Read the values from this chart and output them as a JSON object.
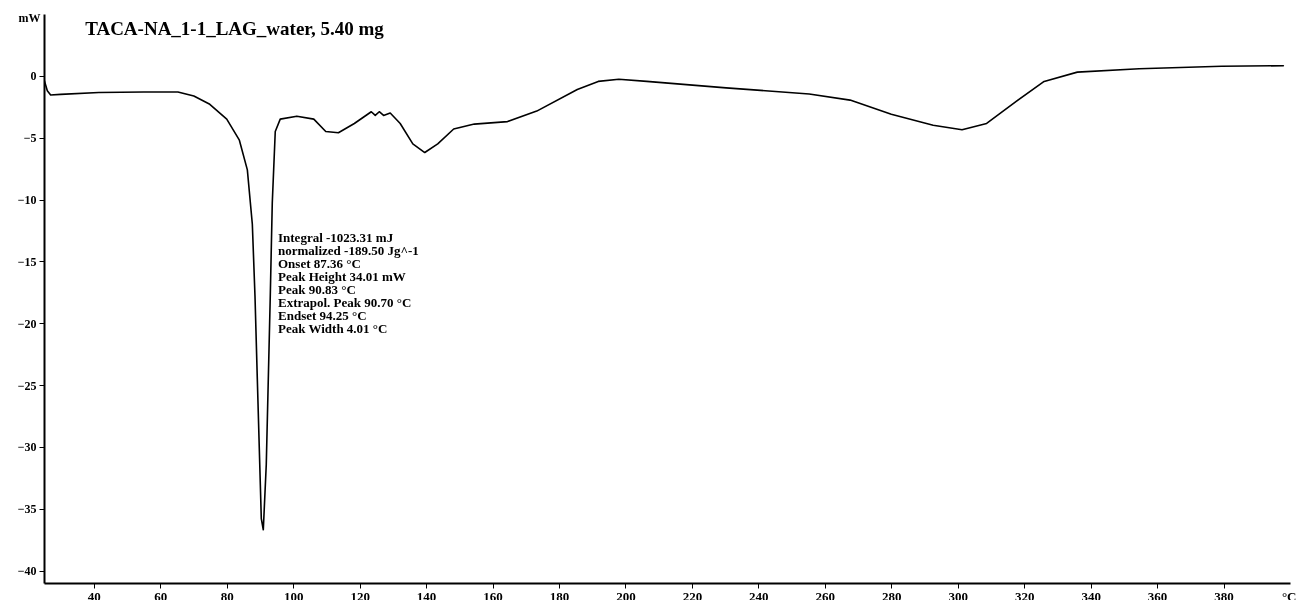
{
  "chart_data": {
    "type": "line",
    "title": "TACA-NA_1-1_LAG_water,  5.40 mg",
    "xlabel": "°C",
    "ylabel": "mW",
    "xlim": [
      25,
      400
    ],
    "xticks": [
      40,
      60,
      80,
      100,
      120,
      140,
      160,
      180,
      200,
      220,
      240,
      260,
      280,
      300,
      320,
      340,
      360,
      380
    ],
    "ylim": [
      -41,
      5
    ],
    "yticks": [
      -40,
      -35,
      -30,
      -25,
      -20,
      -15,
      -10,
      -5,
      0
    ],
    "grid": false,
    "marker": "none",
    "line_style": "solid",
    "series": [
      {
        "color": "#000000",
        "x": [
          25,
          26,
          27,
          30,
          41.5,
          55,
          65.3,
          70.1,
          74.9,
          80,
          83.8,
          86.2,
          87.7,
          88.5,
          89.2,
          90.4,
          91,
          91.9,
          93.1,
          93.7,
          94.6,
          96.1,
          101.1,
          106.2,
          109.8,
          113.6,
          118.4,
          123.5,
          124.7,
          125.9,
          127.2,
          129.2,
          132.2,
          136,
          139.6,
          143.5,
          148.3,
          154.5,
          164.5,
          173.3,
          185.5,
          191.8,
          198,
          206.4,
          230.3,
          255.3,
          267.6,
          280,
          292.6,
          301.3,
          308.7,
          317.4,
          326,
          336,
          354.6,
          379.4,
          398
        ],
        "values": [
          -0.3,
          -1.2,
          -1.55,
          -1.5,
          -1.35,
          -1.3,
          -1.3,
          -1.63,
          -2.3,
          -3.5,
          -5.2,
          -7.6,
          -12,
          -17.8,
          -24.5,
          -35.8,
          -36.7,
          -31.4,
          -17.8,
          -10.3,
          -4.5,
          -3.5,
          -3.26,
          -3.5,
          -4.5,
          -4.6,
          -3.85,
          -2.9,
          -3.2,
          -2.9,
          -3.2,
          -3.0,
          -3.85,
          -5.5,
          -6.2,
          -5.5,
          -4.3,
          -3.9,
          -3.7,
          -2.85,
          -1.1,
          -0.45,
          -0.28,
          -0.45,
          -0.97,
          -1.47,
          -1.96,
          -3.1,
          -4.0,
          -4.36,
          -3.85,
          -2.1,
          -0.45,
          0.3,
          0.57,
          0.77,
          0.82
        ]
      }
    ],
    "annotations": [
      "Integral        -1023.31 mJ",
      "  normalized  -189.50 Jg^-1",
      "Onset            87.36 °C",
      "Peak Height   34.01 mW",
      "Peak              90.83 °C",
      "Extrapol. Peak  90.70 °C",
      "Endset           94.25 °C",
      "Peak Width    4.01 °C"
    ]
  }
}
